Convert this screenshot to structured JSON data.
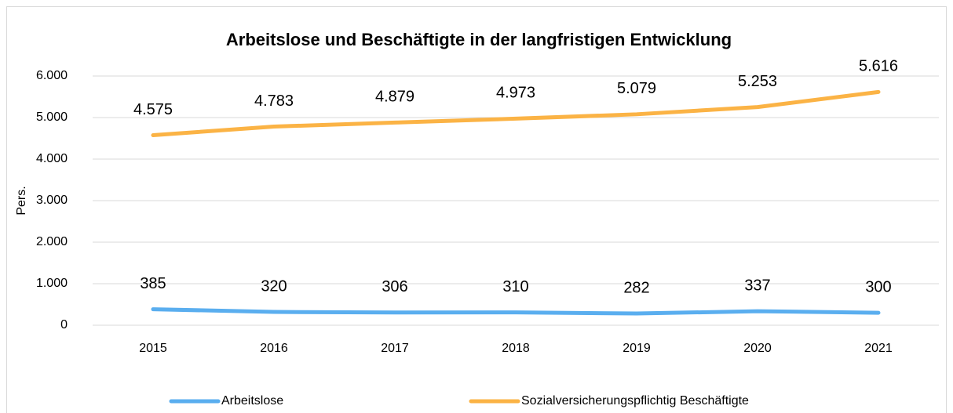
{
  "chart_data": {
    "type": "line",
    "title": "Arbeitslose und Beschäftigte in der langfristigen Entwicklung",
    "y_label": "Pers.",
    "categories": [
      "2015",
      "2016",
      "2017",
      "2018",
      "2019",
      "2020",
      "2021"
    ],
    "series": [
      {
        "name": "Arbeitslose",
        "color": "#5aaeef",
        "values": [
          385,
          320,
          306,
          310,
          282,
          337,
          300
        ]
      },
      {
        "name": "Sozialversicherungspflichtig Beschäftigte",
        "color": "#fbb345",
        "values": [
          4575,
          4783,
          4879,
          4973,
          5079,
          5253,
          5616
        ],
        "value_labels": [
          "4.575",
          "4.783",
          "4.879",
          "4.973",
          "5.079",
          "5.253",
          "5.616"
        ]
      }
    ],
    "ylim": [
      0,
      6000
    ],
    "yticks": [
      0,
      {
        "value": 1000,
        "label": "1.000"
      },
      {
        "value": 2000,
        "label": "2.000"
      },
      {
        "value": 3000,
        "label": "3.000"
      },
      {
        "value": 4000,
        "label": "4.000"
      },
      {
        "value": 5000,
        "label": "5.000"
      },
      {
        "value": 6000,
        "label": "6.000"
      }
    ],
    "grid": true,
    "legend": "bottom"
  }
}
